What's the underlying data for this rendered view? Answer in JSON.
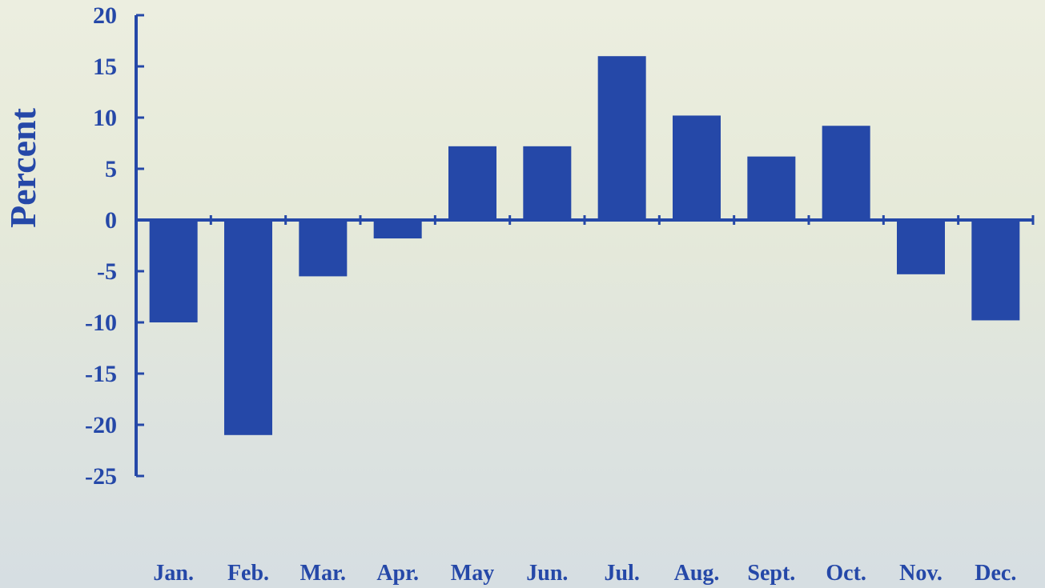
{
  "colors": {
    "bar": "#2548a8",
    "axis": "#2548a8",
    "text": "#2548a8"
  },
  "chart_data": {
    "type": "bar",
    "title": "",
    "xlabel": "",
    "ylabel": "Percent",
    "categories": [
      "Jan.",
      "Feb.",
      "Mar.",
      "Apr.",
      "May",
      "Jun.",
      "Jul.",
      "Aug.",
      "Sept.",
      "Oct.",
      "Nov.",
      "Dec."
    ],
    "values": [
      -10,
      -21,
      -5.5,
      -1.8,
      7.2,
      7.2,
      16,
      10.2,
      6.2,
      9.2,
      -5.3,
      -9.8
    ],
    "ylim": [
      -25,
      20
    ],
    "yticks": [
      20,
      15,
      10,
      5,
      0,
      -5,
      -10,
      -15,
      -20,
      -25
    ],
    "ytick_labels": [
      "20",
      "15",
      "10",
      "5",
      "0",
      "-5",
      "-10",
      "-15",
      "-20",
      "-25"
    ],
    "grid": false,
    "legend": false
  }
}
